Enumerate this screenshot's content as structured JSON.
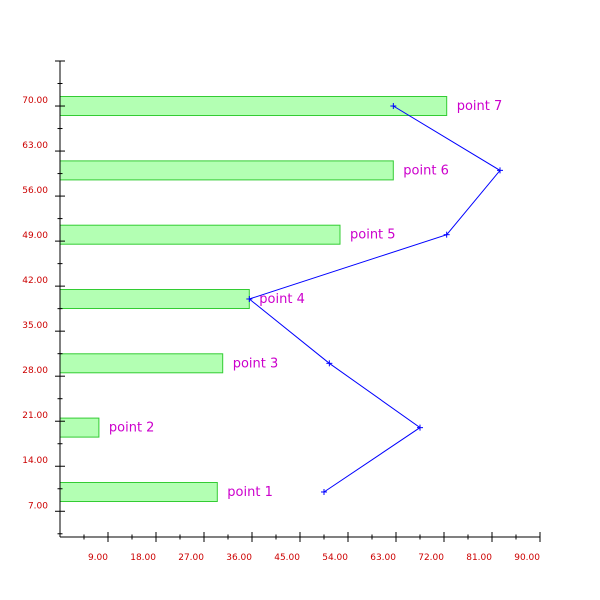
{
  "colors": {
    "axis": "#000000",
    "tick_label": "#cc0000",
    "bar_fill": "#b3ffb3",
    "bar_stroke": "#33cc33",
    "line": "#0000ff",
    "point_label": "#cc00cc"
  },
  "chart_data": {
    "type": "bar",
    "orientation": "horizontal",
    "xlim": [
      0,
      90
    ],
    "ylim": [
      3,
      77
    ],
    "x_ticks": [
      "9.00",
      "18.00",
      "27.00",
      "36.00",
      "45.00",
      "54.00",
      "63.00",
      "72.00",
      "81.00",
      "90.00"
    ],
    "y_ticks": [
      "7.00",
      "14.00",
      "21.00",
      "28.00",
      "35.00",
      "42.00",
      "49.00",
      "56.00",
      "63.00",
      "70.00"
    ],
    "bars": [
      {
        "label": "point 1",
        "y": 10,
        "value": 29.5
      },
      {
        "label": "point 2",
        "y": 20,
        "value": 7.3
      },
      {
        "label": "point 3",
        "y": 30,
        "value": 30.5
      },
      {
        "label": "point 4",
        "y": 40,
        "value": 35.5
      },
      {
        "label": "point 5",
        "y": 50,
        "value": 52.5
      },
      {
        "label": "point 6",
        "y": 60,
        "value": 62.5
      },
      {
        "label": "point 7",
        "y": 70,
        "value": 72.5
      }
    ],
    "line_series": {
      "x": [
        49.5,
        67.5,
        50.5,
        35.5,
        72.5,
        82.5,
        62.5
      ],
      "y": [
        10,
        20,
        30,
        40,
        50,
        60,
        70
      ]
    }
  }
}
